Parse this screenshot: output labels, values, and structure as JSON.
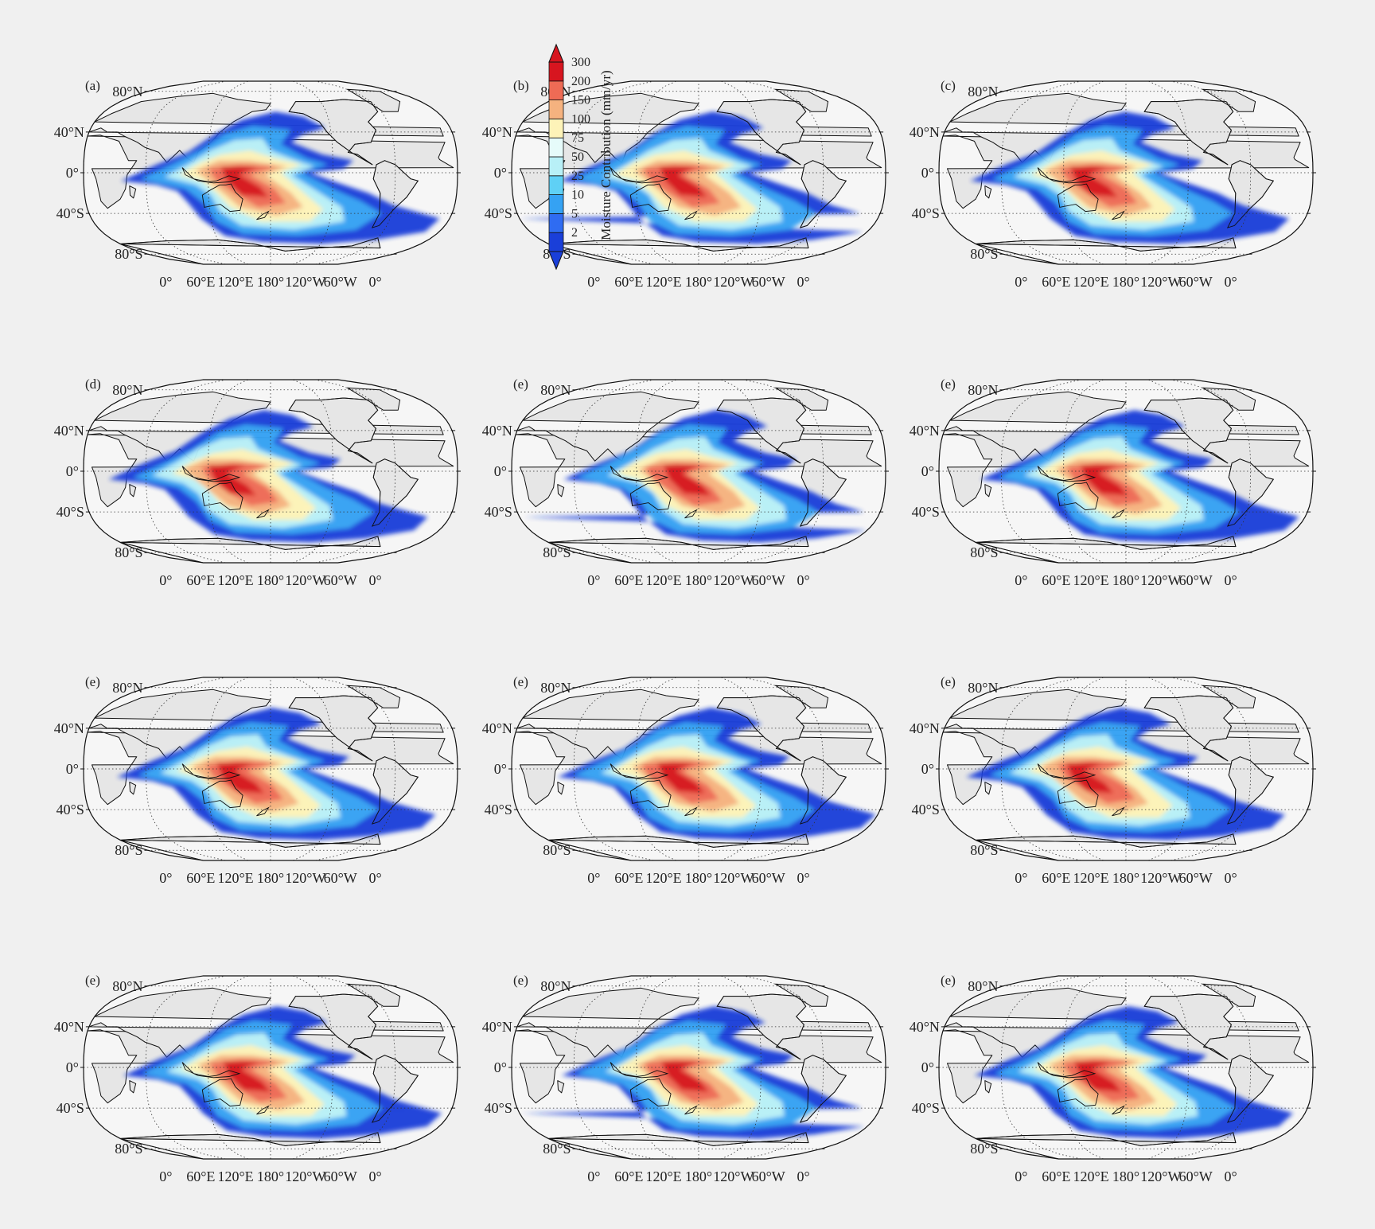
{
  "figure": {
    "panels": [
      {
        "label": "(a)",
        "lon_shift": 0
      },
      {
        "label": "(b)",
        "lon_shift": 10
      },
      {
        "label": "(c)",
        "lon_shift": -6
      },
      {
        "label": "(d)",
        "lon_shift": -12
      },
      {
        "label": "(e)",
        "lon_shift": 14
      },
      {
        "label": "(e)",
        "lon_shift": 4
      },
      {
        "label": "(e)",
        "lon_shift": -4
      },
      {
        "label": "(e)",
        "lon_shift": 8
      },
      {
        "label": "(e)",
        "lon_shift": -10
      },
      {
        "label": "(e)",
        "lon_shift": 2
      },
      {
        "label": "(e)",
        "lon_shift": 12
      },
      {
        "label": "(e)",
        "lon_shift": -2
      }
    ],
    "lat_labels": [
      "80°N",
      "40°N",
      "0°",
      "40°S",
      "80°S"
    ],
    "lat_values": [
      80,
      40,
      0,
      -40,
      -80
    ],
    "lon_labels": [
      "0°",
      "60°E",
      "120°E",
      "180°",
      "120°W",
      "60°W",
      "0°"
    ],
    "lon_values": [
      0,
      60,
      120,
      180,
      240,
      300,
      360
    ],
    "colorbar": {
      "title": "Moisture Contribution (mm/yr)",
      "levels": [
        "2",
        "5",
        "10",
        "25",
        "50",
        "75",
        "100",
        "150",
        "200",
        "300"
      ],
      "colors": [
        "#1a3fd9",
        "#2f6cf2",
        "#35a2f3",
        "#5fd0f5",
        "#b8f0f7",
        "#e6fbfa",
        "#fdf3b8",
        "#f5b27f",
        "#ee6b55",
        "#d7151f"
      ]
    },
    "colors": {
      "land": "#e6e6e6",
      "ocean": "#f6f6f6",
      "background": "#f0f0f0"
    }
  }
}
